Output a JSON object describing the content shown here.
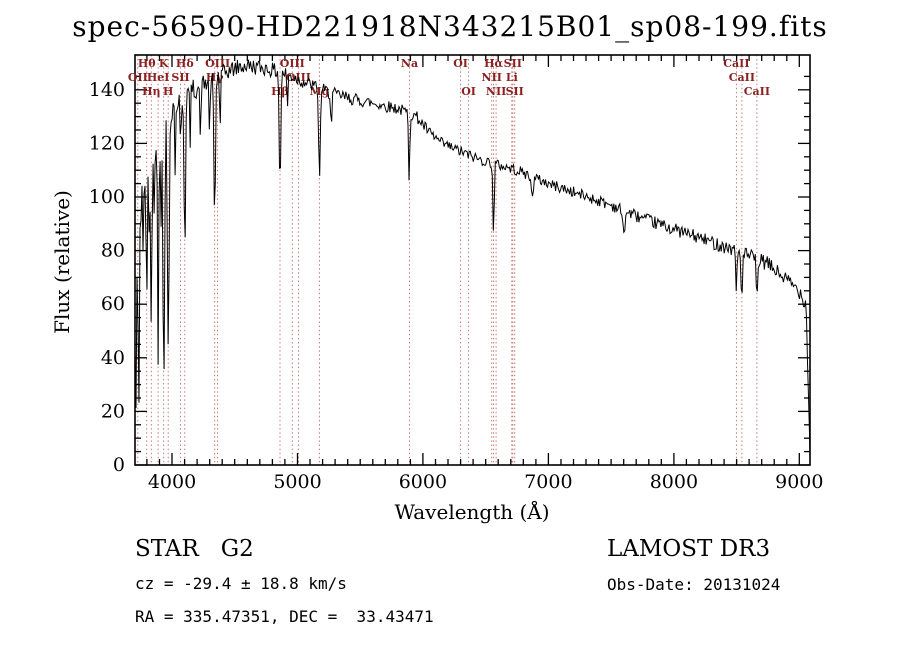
{
  "title": "spec-56590-HD221918N343215B01_sp08-199.fits",
  "annotations": {
    "class_label": "STAR   G2",
    "survey": "LAMOST DR3",
    "cz": "cz = -29.4 ± 18.8 km/s",
    "obs_date": "Obs-Date: 20131024",
    "coords": "RA = 335.47351, DEC =  33.43471"
  },
  "chart_data": {
    "type": "line",
    "title": "spec-56590-HD221918N343215B01_sp08-199.fits",
    "xlabel": "Wavelength (Å)",
    "ylabel": "Flux (relative)",
    "xlim": [
      3705,
      9085
    ],
    "ylim": [
      0,
      153
    ],
    "xticks": [
      4000,
      5000,
      6000,
      7000,
      8000,
      9000
    ],
    "yticks": [
      0,
      20,
      40,
      60,
      80,
      100,
      120,
      140
    ],
    "x_minor_step": 100,
    "y_minor_step": 5,
    "grid": false,
    "legend": "none",
    "colors": {
      "line": "#000000",
      "axis": "#000000",
      "marker_line": "#c46a6a",
      "marker_label": "#8b2020"
    },
    "spectral_lines": [
      {
        "name": "OII",
        "wavelength": 3727,
        "row": 2
      },
      {
        "name": "Hθ",
        "wavelength": 3798,
        "row": 1
      },
      {
        "name": "Hη",
        "wavelength": 3835,
        "row": 3
      },
      {
        "name": "HeI",
        "wavelength": 3889,
        "row": 2
      },
      {
        "name": "K",
        "wavelength": 3934,
        "row": 1
      },
      {
        "name": "H",
        "wavelength": 3970,
        "row": 3
      },
      {
        "name": "SII",
        "wavelength": 4068,
        "row": 2
      },
      {
        "name": "Hδ",
        "wavelength": 4102,
        "row": 1
      },
      {
        "name": "Hγ",
        "wavelength": 4340,
        "row": 2
      },
      {
        "name": "OIII",
        "wavelength": 4363,
        "row": 1
      },
      {
        "name": "Hβ",
        "wavelength": 4861,
        "row": 3
      },
      {
        "name": "OIII",
        "wavelength": 4959,
        "row": 1
      },
      {
        "name": "OIII",
        "wavelength": 5007,
        "row": 2
      },
      {
        "name": "Mg",
        "wavelength": 5175,
        "row": 3
      },
      {
        "name": "Na",
        "wavelength": 5893,
        "row": 1
      },
      {
        "name": "OI",
        "wavelength": 6300,
        "row": 1
      },
      {
        "name": "OI",
        "wavelength": 6364,
        "row": 3
      },
      {
        "name": "NII",
        "wavelength": 6548,
        "row": 2
      },
      {
        "name": "Hα",
        "wavelength": 6563,
        "row": 1
      },
      {
        "name": "NII",
        "wavelength": 6583,
        "row": 3
      },
      {
        "name": "Li",
        "wavelength": 6708,
        "row": 2
      },
      {
        "name": "SII",
        "wavelength": 6716,
        "row": 1
      },
      {
        "name": "SII",
        "wavelength": 6731,
        "row": 3
      },
      {
        "name": "CaII",
        "wavelength": 8498,
        "row": 1
      },
      {
        "name": "CaII",
        "wavelength": 8542,
        "row": 2
      },
      {
        "name": "CaII",
        "wavelength": 8662,
        "row": 3
      }
    ],
    "spectrum": {
      "seed": 42,
      "continuum": [
        [
          3705,
          45
        ],
        [
          3720,
          70
        ],
        [
          3750,
          98
        ],
        [
          3780,
          112
        ],
        [
          3800,
          118
        ],
        [
          3850,
          124
        ],
        [
          3900,
          128
        ],
        [
          3950,
          131
        ],
        [
          4000,
          134
        ],
        [
          4100,
          138
        ],
        [
          4200,
          141
        ],
        [
          4300,
          143
        ],
        [
          4400,
          146
        ],
        [
          4500,
          148
        ],
        [
          4600,
          149
        ],
        [
          4750,
          148
        ],
        [
          4900,
          146
        ],
        [
          5000,
          144
        ],
        [
          5100,
          142
        ],
        [
          5250,
          139
        ],
        [
          5400,
          137
        ],
        [
          5600,
          135
        ],
        [
          5800,
          133
        ],
        [
          5950,
          130
        ],
        [
          6050,
          124
        ],
        [
          6150,
          120
        ],
        [
          6300,
          117
        ],
        [
          6450,
          114
        ],
        [
          6600,
          112
        ],
        [
          6750,
          110
        ],
        [
          7000,
          105
        ],
        [
          7250,
          101
        ],
        [
          7500,
          97
        ],
        [
          7750,
          92
        ],
        [
          8000,
          88
        ],
        [
          8250,
          84
        ],
        [
          8500,
          80
        ],
        [
          8750,
          75
        ],
        [
          9000,
          65
        ],
        [
          9055,
          60
        ],
        [
          9085,
          3
        ]
      ],
      "absorption_lines": [
        [
          3712,
          35,
          4
        ],
        [
          3727,
          30,
          5
        ],
        [
          3737,
          45,
          4
        ],
        [
          3770,
          40,
          4
        ],
        [
          3798,
          70,
          5
        ],
        [
          3820,
          35,
          4
        ],
        [
          3835,
          78,
          5
        ],
        [
          3860,
          40,
          4
        ],
        [
          3889,
          82,
          5
        ],
        [
          3912,
          35,
          4
        ],
        [
          3934,
          96,
          7
        ],
        [
          3970,
          92,
          7
        ],
        [
          4026,
          25,
          4
        ],
        [
          4068,
          22,
          4
        ],
        [
          4102,
          56,
          6
        ],
        [
          4144,
          18,
          4
        ],
        [
          4226,
          22,
          4
        ],
        [
          4300,
          18,
          5
        ],
        [
          4340,
          54,
          6
        ],
        [
          4383,
          20,
          4
        ],
        [
          4861,
          44,
          6
        ],
        [
          4920,
          12,
          4
        ],
        [
          5175,
          36,
          6
        ],
        [
          5270,
          14,
          4
        ],
        [
          5890,
          24,
          5
        ],
        [
          6563,
          28,
          5
        ],
        [
          6870,
          6,
          10
        ],
        [
          7600,
          8,
          10
        ],
        [
          8498,
          15,
          5
        ],
        [
          8542,
          19,
          5
        ],
        [
          8662,
          17,
          5
        ]
      ],
      "noise": [
        [
          3705,
          26
        ],
        [
          3730,
          22
        ],
        [
          3760,
          17
        ],
        [
          3800,
          12
        ],
        [
          3850,
          9
        ],
        [
          3900,
          8
        ],
        [
          3950,
          7
        ],
        [
          4000,
          5.5
        ],
        [
          4100,
          4.5
        ],
        [
          4300,
          3.5
        ],
        [
          4600,
          3
        ],
        [
          5000,
          2.6
        ],
        [
          5500,
          2.3
        ],
        [
          6000,
          2.2
        ],
        [
          6500,
          2.0
        ],
        [
          7000,
          2.0
        ],
        [
          7500,
          2.2
        ],
        [
          8000,
          2.4
        ],
        [
          8500,
          2.6
        ],
        [
          9000,
          3.0
        ],
        [
          9085,
          3.0
        ]
      ]
    }
  }
}
